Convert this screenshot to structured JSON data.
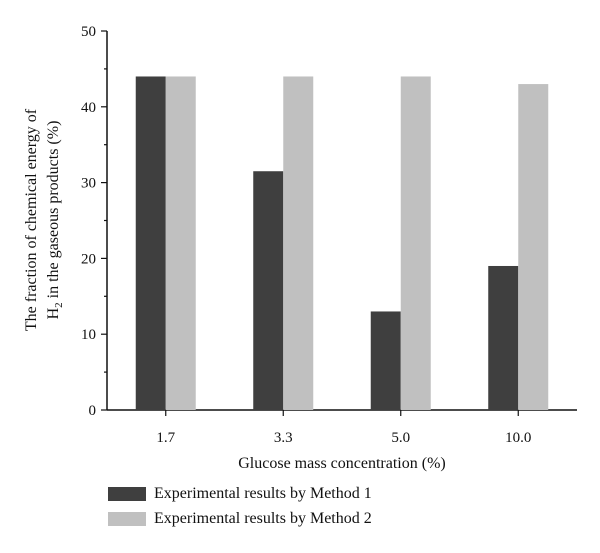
{
  "chart_data": {
    "type": "bar",
    "categories": [
      "1.7",
      "3.3",
      "5.0",
      "10.0"
    ],
    "series": [
      {
        "name": "Experimental results by Method 1",
        "color": "#3f3f3f",
        "values": [
          44,
          31.5,
          13,
          19
        ]
      },
      {
        "name": "Experimental results by Method 2",
        "color": "#c0c0c0",
        "values": [
          44,
          44,
          44,
          43
        ]
      }
    ],
    "xlabel": "Glucose mass concentration (%)",
    "ylabel_line1": "The fraction of chemical energy of",
    "ylabel_line2_prefix": "H",
    "ylabel_line2_sub": "2",
    "ylabel_line2_suffix": " in the gaseous products (%)",
    "ylim": [
      0,
      50
    ],
    "yticks": [
      0,
      10,
      20,
      30,
      40,
      50
    ],
    "grid": false,
    "legend_position": "bottom"
  },
  "legend": {
    "items": [
      {
        "label": "Experimental results by Method 1",
        "color": "#3f3f3f"
      },
      {
        "label": "Experimental results by Method 2",
        "color": "#c0c0c0"
      }
    ]
  }
}
